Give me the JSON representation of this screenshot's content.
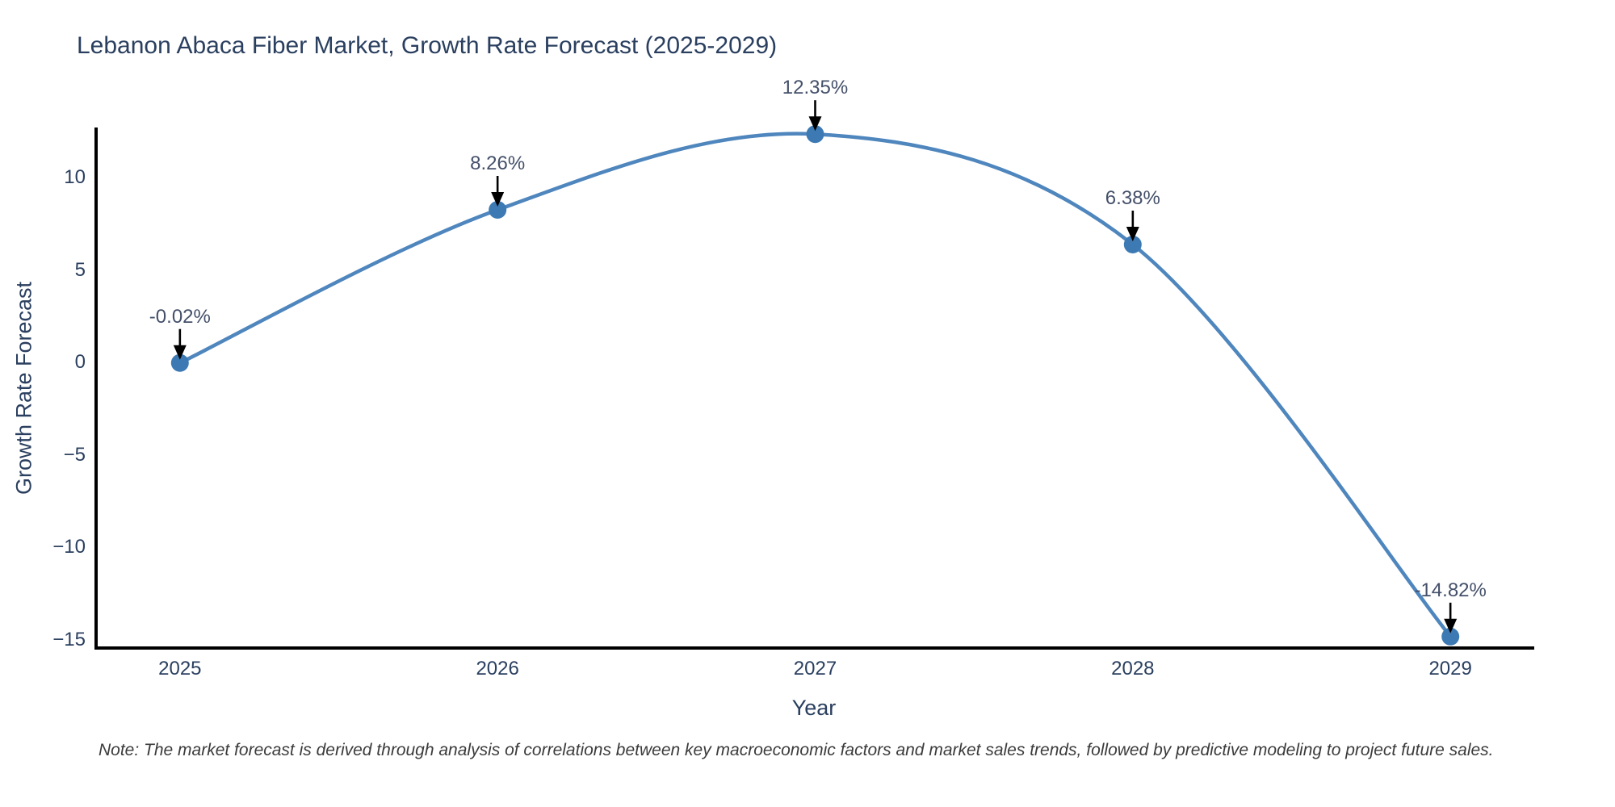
{
  "chart": {
    "title": "Lebanon Abaca Fiber Market, Growth Rate Forecast (2025-2029)",
    "ylabel": "Growth Rate Forecast",
    "xlabel": "Year",
    "note": "Note: The market forecast is derived through analysis of correlations between key macroeconomic factors and market sales trends, followed by predictive modeling to project future sales."
  },
  "chart_data": {
    "type": "line",
    "line_shape": "spline",
    "title": "Lebanon Abaca Fiber Market, Growth Rate Forecast (2025-2029)",
    "xlabel": "Year",
    "ylabel": "Growth Rate Forecast",
    "x": [
      2025,
      2026,
      2027,
      2028,
      2029
    ],
    "y": [
      -0.02,
      8.26,
      12.35,
      6.38,
      -14.82
    ],
    "point_labels": [
      "-0.02%",
      "8.26%",
      "12.35%",
      "6.38%",
      "-14.82%"
    ],
    "x_tick_labels": [
      "2025",
      "2026",
      "2027",
      "2028",
      "2029"
    ],
    "y_ticks": {
      "values": [
        10,
        5,
        0,
        -5,
        -10,
        -15
      ],
      "labels": [
        "10",
        "5",
        "0",
        "−5",
        "−10",
        "−15"
      ]
    },
    "xlim": [
      2024.736,
      2029.264
    ],
    "ylim": [
      -15.44,
      12.71
    ],
    "grid": false,
    "legend": "none",
    "line_color": "#4e86bd",
    "marker_color": "#3d7ab4",
    "annotation_arrow_color": "#000000",
    "annotation_text_color": "#44506a",
    "axis_color": "#000000",
    "title_color": "#2a3f5f",
    "tick_color": "#2a3f5f",
    "background_color": "#ffffff"
  }
}
